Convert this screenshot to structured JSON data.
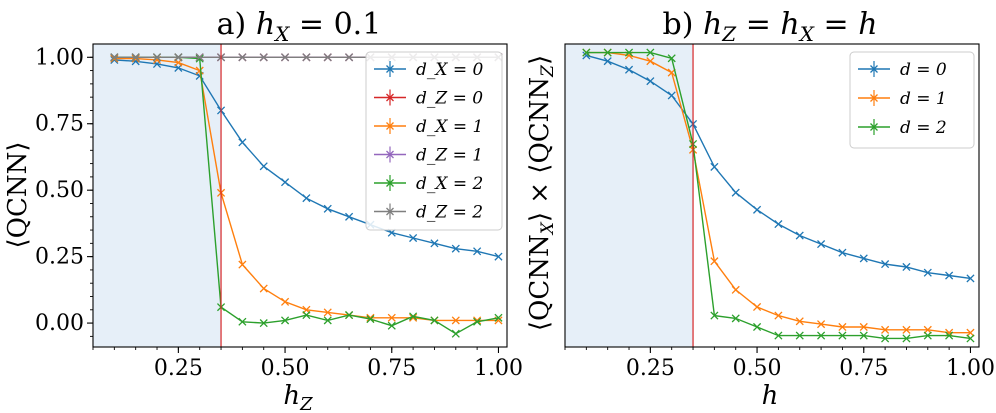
{
  "chart_data": [
    {
      "type": "line",
      "panel": "a",
      "title": "a) h_X = 0.1",
      "xlabel": "h_Z",
      "ylabel": "⟨QCNN⟩",
      "xlim": [
        0.05,
        1.02
      ],
      "ylim": [
        -0.09,
        1.05
      ],
      "xticks": [
        "0.25",
        "0.50",
        "0.75",
        "1.00"
      ],
      "yticks": [
        "0.00",
        "0.25",
        "0.50",
        "0.75",
        "1.00"
      ],
      "shaded_region": [
        0.05,
        0.35
      ],
      "vline": 0.35,
      "legend": "top-right",
      "x": [
        0.1,
        0.15,
        0.2,
        0.25,
        0.3,
        0.35,
        0.4,
        0.45,
        0.5,
        0.55,
        0.6,
        0.65,
        0.7,
        0.75,
        0.8,
        0.85,
        0.9,
        0.95,
        1.0
      ],
      "series": [
        {
          "name": "d_X = 0",
          "color": "#1f77b4",
          "values": [
            0.99,
            0.985,
            0.975,
            0.96,
            0.93,
            0.8,
            0.68,
            0.59,
            0.53,
            0.47,
            0.43,
            0.4,
            0.37,
            0.34,
            0.32,
            0.3,
            0.28,
            0.27,
            0.25
          ]
        },
        {
          "name": "d_Z = 0",
          "color": "#d62728",
          "values": [
            1.0,
            1.0,
            1.0,
            1.0,
            1.0,
            1.0,
            1.0,
            1.0,
            1.0,
            1.0,
            1.0,
            1.0,
            1.0,
            1.0,
            1.0,
            1.0,
            1.0,
            1.0,
            1.0
          ]
        },
        {
          "name": "d_X = 1",
          "color": "#ff7f0e",
          "values": [
            0.995,
            0.995,
            0.99,
            0.98,
            0.95,
            0.49,
            0.22,
            0.13,
            0.08,
            0.05,
            0.04,
            0.03,
            0.02,
            0.02,
            0.02,
            0.01,
            0.01,
            0.01,
            0.01
          ]
        },
        {
          "name": "d_Z = 1",
          "color": "#9467bd",
          "values": [
            1.0,
            1.0,
            1.0,
            1.0,
            1.0,
            1.0,
            1.0,
            1.0,
            1.0,
            1.0,
            1.0,
            1.0,
            1.0,
            1.0,
            1.0,
            1.0,
            1.0,
            1.0,
            1.0
          ]
        },
        {
          "name": "d_X = 2",
          "color": "#2ca02c",
          "values": [
            1.0,
            1.0,
            1.0,
            1.0,
            0.995,
            0.06,
            0.005,
            0.0,
            0.01,
            0.03,
            0.01,
            0.03,
            0.015,
            -0.01,
            0.025,
            0.01,
            -0.04,
            0.005,
            0.02
          ]
        },
        {
          "name": "d_Z = 2",
          "color": "#7f7f7f",
          "values": [
            1.0,
            1.0,
            1.0,
            1.0,
            1.0,
            1.0,
            1.0,
            1.0,
            1.0,
            1.0,
            1.0,
            1.0,
            1.0,
            1.0,
            1.0,
            1.0,
            1.0,
            1.0,
            1.0
          ]
        }
      ]
    },
    {
      "type": "line",
      "panel": "b",
      "title": "b) h_Z = h_X = h",
      "xlabel": "h",
      "ylabel": "⟨QCNN_X⟩ × ⟨QCNN_Z⟩",
      "xlim": [
        0.05,
        1.02
      ],
      "ylim": [
        -0.03,
        1.03
      ],
      "xticks": [
        "0.25",
        "0.50",
        "0.75",
        "1.00"
      ],
      "yticks": [],
      "shaded_region": [
        0.05,
        0.35
      ],
      "vline": 0.35,
      "legend": "top-right",
      "x": [
        0.1,
        0.15,
        0.2,
        0.25,
        0.3,
        0.35,
        0.4,
        0.45,
        0.5,
        0.55,
        0.6,
        0.65,
        0.7,
        0.75,
        0.8,
        0.85,
        0.9,
        0.95,
        1.0
      ],
      "series": [
        {
          "name": "d = 0",
          "color": "#1f77b4",
          "values": [
            0.99,
            0.97,
            0.94,
            0.9,
            0.85,
            0.75,
            0.6,
            0.51,
            0.45,
            0.4,
            0.36,
            0.33,
            0.3,
            0.28,
            0.26,
            0.25,
            0.23,
            0.22,
            0.21
          ]
        },
        {
          "name": "d = 1",
          "color": "#ff7f0e",
          "values": [
            1.0,
            1.0,
            0.99,
            0.97,
            0.93,
            0.66,
            0.27,
            0.17,
            0.11,
            0.08,
            0.06,
            0.05,
            0.04,
            0.04,
            0.03,
            0.03,
            0.03,
            0.02,
            0.02
          ]
        },
        {
          "name": "d = 2",
          "color": "#2ca02c",
          "values": [
            1.0,
            1.0,
            1.0,
            1.0,
            0.98,
            0.68,
            0.08,
            0.07,
            0.04,
            0.01,
            0.01,
            0.01,
            0.01,
            0.01,
            0.0,
            0.0,
            0.01,
            0.01,
            0.0
          ]
        }
      ]
    }
  ]
}
